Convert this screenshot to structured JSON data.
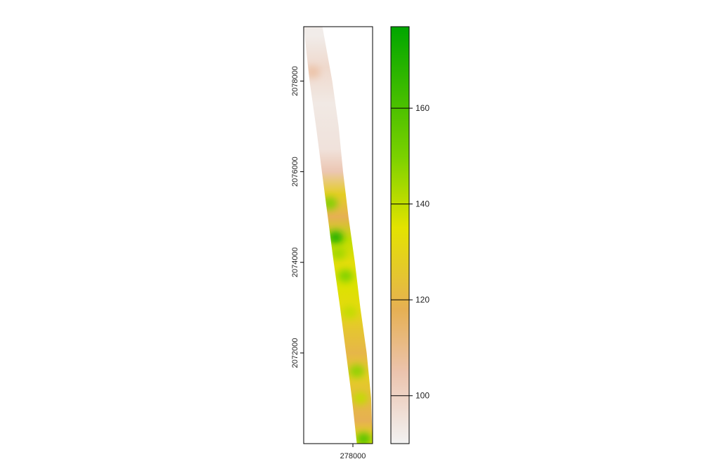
{
  "chart_data": {
    "type": "heatmap",
    "title": "",
    "xlabel": "",
    "ylabel": "",
    "x_ticks": [
      {
        "value": 278000,
        "label": "278000"
      }
    ],
    "y_ticks": [
      {
        "value": 2072000,
        "label": "2072000"
      },
      {
        "value": 2074000,
        "label": "2074000"
      },
      {
        "value": 2076000,
        "label": "2076000"
      },
      {
        "value": 2078000,
        "label": "2078000"
      }
    ],
    "xlim": [
      277000,
      278400
    ],
    "ylim": [
      2070000,
      2079200
    ],
    "grid": false,
    "legend_placement": "right",
    "colorbar": {
      "range": [
        90,
        177
      ],
      "ticks": [
        {
          "value": 100,
          "label": "100"
        },
        {
          "value": 120,
          "label": "120"
        },
        {
          "value": 140,
          "label": "140"
        },
        {
          "value": 160,
          "label": "160"
        }
      ],
      "color_stops": [
        {
          "value": 90,
          "color": "#f2f2f2"
        },
        {
          "value": 105,
          "color": "#ecc3ad"
        },
        {
          "value": 118,
          "color": "#e6b053"
        },
        {
          "value": 135,
          "color": "#e3e300"
        },
        {
          "value": 150,
          "color": "#7ad100"
        },
        {
          "value": 177,
          "color": "#00a600"
        }
      ]
    },
    "strip_profile": [
      {
        "y": 2079200,
        "x_left": 277000,
        "x_right": 277380
      },
      {
        "y": 2078000,
        "x_left": 277120,
        "x_right": 277580
      },
      {
        "y": 2077000,
        "x_left": 277250,
        "x_right": 277710
      },
      {
        "y": 2076000,
        "x_left": 277370,
        "x_right": 277800
      },
      {
        "y": 2075000,
        "x_left": 277490,
        "x_right": 277910
      },
      {
        "y": 2074000,
        "x_left": 277610,
        "x_right": 278040
      },
      {
        "y": 2073000,
        "x_left": 277740,
        "x_right": 278150
      },
      {
        "y": 2072000,
        "x_left": 277860,
        "x_right": 278280
      },
      {
        "y": 2071000,
        "x_left": 277980,
        "x_right": 278370
      },
      {
        "y": 2070000,
        "x_left": 278080,
        "x_right": 278400
      }
    ],
    "strip_values": [
      {
        "y": 2079000,
        "value": 92
      },
      {
        "y": 2078300,
        "value": 98
      },
      {
        "y": 2077500,
        "value": 93
      },
      {
        "y": 2076500,
        "value": 95
      },
      {
        "y": 2076000,
        "value": 104
      },
      {
        "y": 2075500,
        "value": 128
      },
      {
        "y": 2075000,
        "value": 118
      },
      {
        "y": 2074500,
        "value": 140
      },
      {
        "y": 2074000,
        "value": 133
      },
      {
        "y": 2073500,
        "value": 136
      },
      {
        "y": 2073000,
        "value": 132
      },
      {
        "y": 2072500,
        "value": 125
      },
      {
        "y": 2072000,
        "value": 120
      },
      {
        "y": 2071500,
        "value": 128
      },
      {
        "y": 2071000,
        "value": 122
      },
      {
        "y": 2070500,
        "value": 118
      },
      {
        "y": 2070000,
        "value": 135
      }
    ],
    "hotspots": [
      {
        "x": 277530,
        "y": 2075300,
        "value": 150
      },
      {
        "x": 277650,
        "y": 2074550,
        "value": 172
      },
      {
        "x": 277700,
        "y": 2074200,
        "value": 145
      },
      {
        "x": 277850,
        "y": 2073700,
        "value": 150
      },
      {
        "x": 277930,
        "y": 2072900,
        "value": 140
      },
      {
        "x": 278080,
        "y": 2071600,
        "value": 148
      },
      {
        "x": 278150,
        "y": 2071000,
        "value": 140
      },
      {
        "x": 278220,
        "y": 2070100,
        "value": 160
      },
      {
        "x": 277180,
        "y": 2078200,
        "value": 106
      }
    ]
  }
}
